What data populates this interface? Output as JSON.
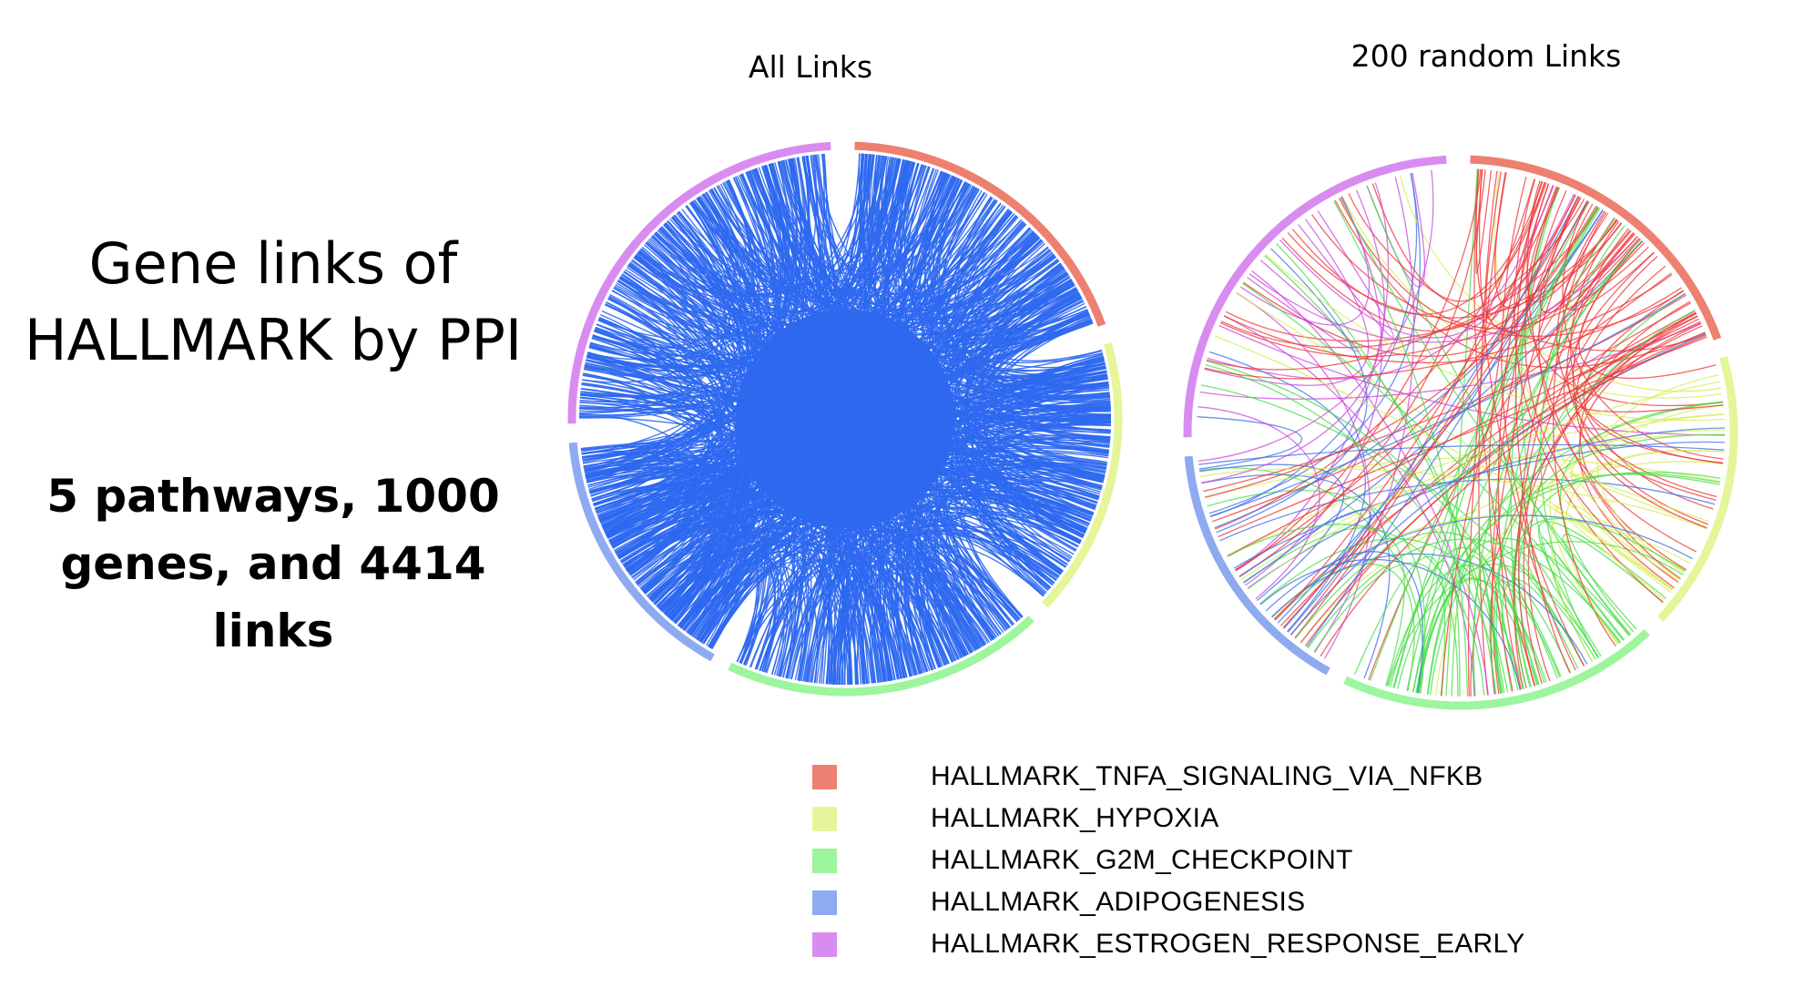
{
  "panels": {
    "all_title": "All Links",
    "random_title": "200 random Links"
  },
  "side_text": {
    "heading_line1": "Gene links of",
    "heading_line2": "HALLMARK by PPI",
    "summary_line1": "5 pathways, 1000",
    "summary_line2": "genes, and 4414",
    "summary_line3": "links"
  },
  "legend": [
    {
      "label": "HALLMARK_TNFA_SIGNALING_VIA_NFKB",
      "color": "#ed8070"
    },
    {
      "label": "HALLMARK_HYPOXIA",
      "color": "#e4f59a"
    },
    {
      "label": "HALLMARK_G2M_CHECKPOINT",
      "color": "#9df59d"
    },
    {
      "label": "HALLMARK_ADIPOGENESIS",
      "color": "#8eaaf0"
    },
    {
      "label": "HALLMARK_ESTROGEN_RESPONSE_EARLY",
      "color": "#d98cf0"
    }
  ],
  "chords": {
    "all_link_color": "#2d68ef",
    "random_link_colors": [
      "#ee3333",
      "#d4ee55",
      "#44dd44",
      "#3c6ee6",
      "#cc44dd"
    ]
  }
}
